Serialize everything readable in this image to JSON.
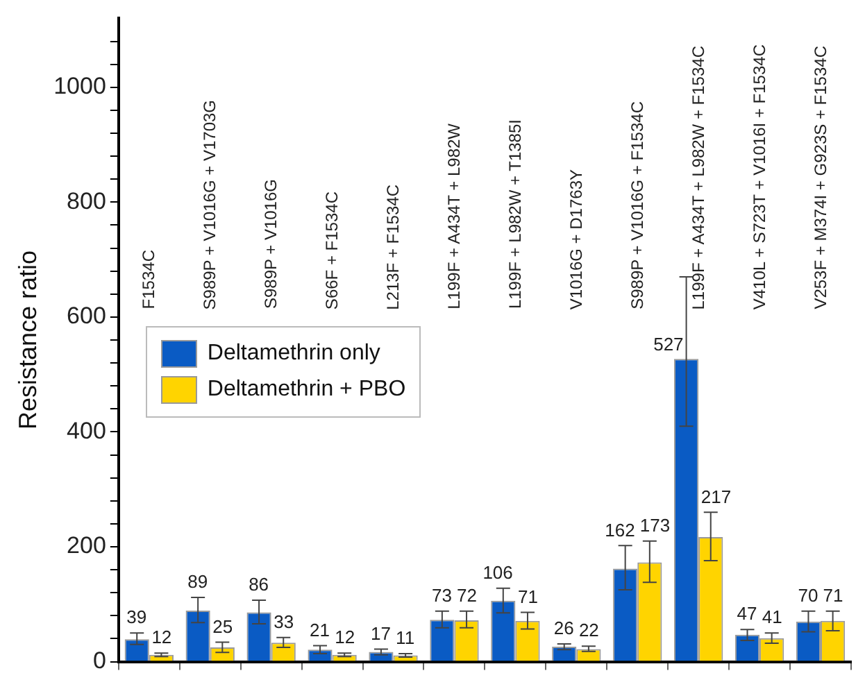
{
  "chart_data": {
    "type": "bar",
    "ylabel": "Resistance ratio",
    "categories": [
      "F1534C",
      "S989P + V1016G + V1703G",
      "S989P + V1016G",
      "S66F + F1534C",
      "L213F + F1534C",
      "L199F + A434T + L982W",
      "L199F + L982W + T1385I",
      "V1016G + D1763Y",
      "S989P + V1016G + F1534C",
      "L199F + A434T + L982W + F1534C",
      "V410L + S723T + V1016I + F1534C",
      "V253F + M374I + G923S + F1534C"
    ],
    "series": [
      {
        "name": "Deltamethrin only",
        "color": "#0a5bc4",
        "values": [
          39,
          89,
          86,
          21,
          17,
          73,
          106,
          26,
          162,
          527,
          47,
          70
        ],
        "errors": [
          [
            30,
            50
          ],
          [
            68,
            112
          ],
          [
            66,
            107
          ],
          [
            14,
            28
          ],
          [
            12,
            22
          ],
          [
            59,
            88
          ],
          [
            85,
            128
          ],
          [
            21,
            31
          ],
          [
            125,
            202
          ],
          [
            410,
            670
          ],
          [
            37,
            56
          ],
          [
            52,
            88
          ]
        ]
      },
      {
        "name": "Deltamethrin + PBO",
        "color": "#ffd400",
        "values": [
          12,
          25,
          33,
          12,
          11,
          72,
          71,
          22,
          173,
          217,
          41,
          71
        ],
        "errors": [
          [
            9,
            15
          ],
          [
            16,
            34
          ],
          [
            25,
            42
          ],
          [
            9,
            15
          ],
          [
            8,
            14
          ],
          [
            59,
            88
          ],
          [
            57,
            86
          ],
          [
            18,
            27
          ],
          [
            138,
            210
          ],
          [
            176,
            260
          ],
          [
            32,
            50
          ],
          [
            54,
            88
          ]
        ]
      }
    ],
    "ylim": [
      0,
      1120
    ],
    "yticks": [
      0,
      {
        "value": 40,
        "label": null
      },
      {
        "value": 80,
        "label": null
      },
      {
        "value": 120,
        "label": null
      },
      {
        "value": 160,
        "label": null
      },
      200,
      {
        "value": 240,
        "label": null
      },
      {
        "value": 280,
        "label": null
      },
      {
        "value": 320,
        "label": null
      },
      {
        "value": 360,
        "label": null
      },
      400,
      {
        "value": 440,
        "label": null
      },
      {
        "value": 480,
        "label": null
      },
      {
        "value": 520,
        "label": null
      },
      {
        "value": 560,
        "label": null
      },
      600,
      {
        "value": 640,
        "label": null
      },
      {
        "value": 680,
        "label": null
      },
      {
        "value": 720,
        "label": null
      },
      {
        "value": 760,
        "label": null
      },
      800,
      {
        "value": 840,
        "label": null
      },
      {
        "value": 880,
        "label": null
      },
      {
        "value": 920,
        "label": null
      },
      {
        "value": 960,
        "label": null
      },
      1000,
      {
        "value": 1040,
        "label": null
      },
      {
        "value": 1080,
        "label": null
      }
    ],
    "grid": false,
    "legend": "left",
    "data_labels": true,
    "tick_labels": "y"
  }
}
